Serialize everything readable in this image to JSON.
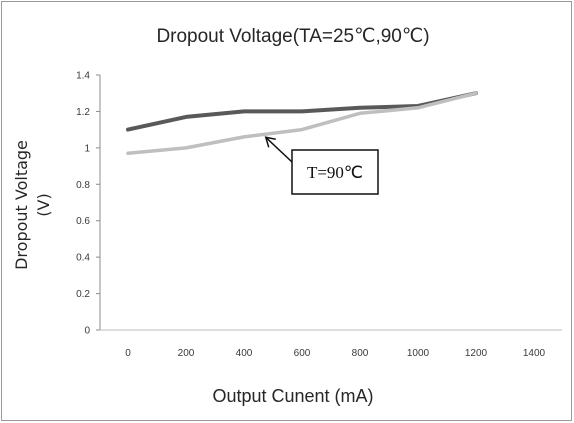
{
  "chart_data": {
    "type": "line",
    "title": "Dropout Voltage(TA=25℃,90℃)",
    "xlabel": "Output Cunent (mA)",
    "ylabel_line1": "Dropout Voltage",
    "ylabel_line2": "(V)",
    "xlim": [
      0,
      1400
    ],
    "ylim": [
      0,
      1.4
    ],
    "x_ticks": [
      0,
      200,
      400,
      600,
      800,
      1000,
      1200,
      1400
    ],
    "x_tick_labels": [
      "0",
      "200",
      "400",
      "600",
      "800",
      "1000",
      "1200",
      "1400"
    ],
    "y_ticks": [
      0,
      0.2,
      0.4,
      0.6,
      0.8,
      1,
      1.2,
      1.4
    ],
    "y_tick_labels": [
      "0",
      "0.2",
      "0.4",
      "0.6",
      "0.8",
      "1",
      "1.2",
      "1.4"
    ],
    "grid": false,
    "legend": "none",
    "series": [
      {
        "color": "#595959",
        "x": [
          0,
          200,
          400,
          600,
          800,
          1000,
          1200
        ],
        "values": [
          1.1,
          1.17,
          1.2,
          1.2,
          1.22,
          1.23,
          1.3
        ]
      },
      {
        "color": "#bfbfbf",
        "x": [
          0,
          200,
          400,
          600,
          800,
          1000,
          1200
        ],
        "values": [
          0.97,
          1.0,
          1.06,
          1.1,
          1.19,
          1.22,
          1.3
        ]
      }
    ],
    "annotations": [
      {
        "text": "T=90℃",
        "target_series": 1,
        "target_x": 475,
        "target_y": 1.08
      }
    ]
  }
}
